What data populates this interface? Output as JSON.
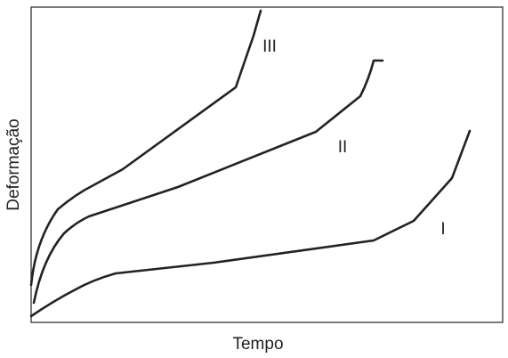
{
  "axes": {
    "x_label": "Tempo",
    "y_label": "Deformação"
  },
  "curves": [
    {
      "label": "I"
    },
    {
      "label": "II"
    },
    {
      "label": "III"
    }
  ]
}
